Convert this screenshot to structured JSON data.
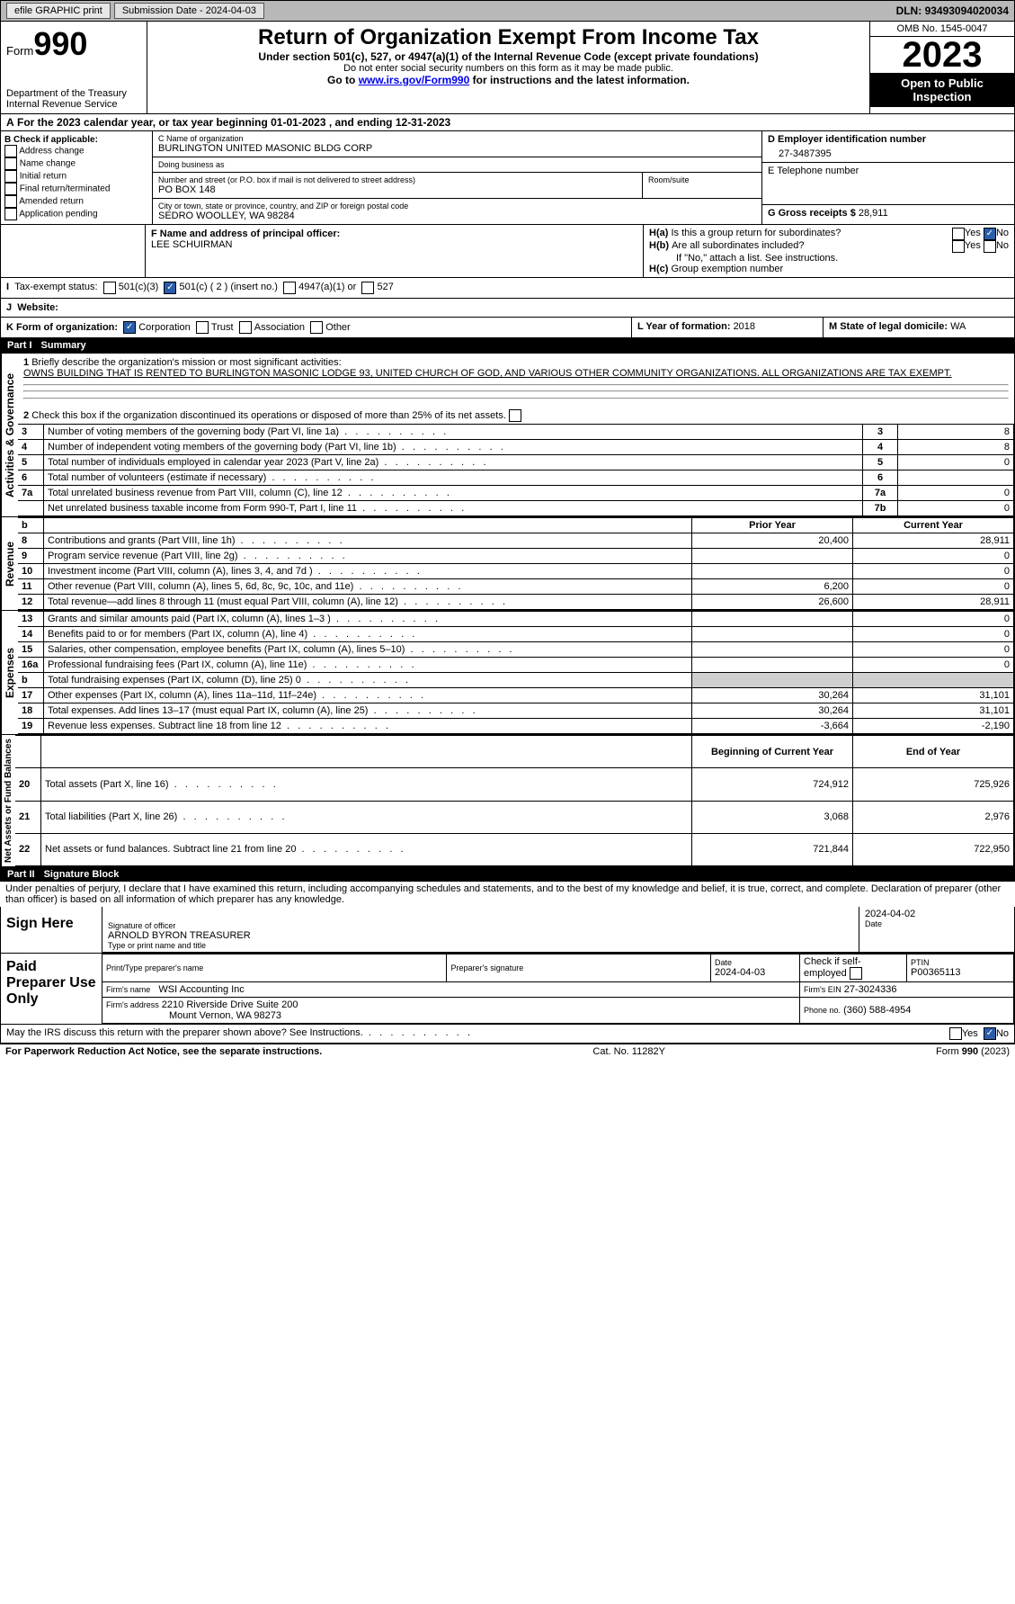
{
  "topbar": {
    "efile": "efile GRAPHIC print",
    "subdate_lbl": "Submission Date - ",
    "subdate": "2024-04-03",
    "dln_lbl": "DLN: ",
    "dln": "93493094020034"
  },
  "hdr": {
    "form_word": "Form",
    "form_num": "990",
    "dept": "Department of the Treasury",
    "irs": "Internal Revenue Service",
    "title": "Return of Organization Exempt From Income Tax",
    "sub": "Under section 501(c), 527, or 4947(a)(1) of the Internal Revenue Code (except private foundations)",
    "sub2": "Do not enter social security numbers on this form as it may be made public.",
    "link_pre": "Go to ",
    "link": "www.irs.gov/Form990",
    "link_post": " for instructions and the latest information.",
    "omb": "OMB No. 1545-0047",
    "year": "2023",
    "open": "Open to Public Inspection"
  },
  "A": {
    "line": "For the 2023 calendar year, or tax year beginning 01-01-2023    , and ending 12-31-2023"
  },
  "B": {
    "hdr": "B Check if applicable:",
    "items": [
      "Address change",
      "Name change",
      "Initial return",
      "Final return/terminated",
      "Amended return",
      "Application pending"
    ]
  },
  "C": {
    "name_lbl": "C Name of organization",
    "name": "BURLINGTON UNITED MASONIC BLDG CORP",
    "dba_lbl": "Doing business as",
    "dba": "",
    "addr_lbl": "Number and street (or P.O. box if mail is not delivered to street address)",
    "addr": "PO BOX 148",
    "room_lbl": "Room/suite",
    "room": "",
    "city_lbl": "City or town, state or province, country, and ZIP or foreign postal code",
    "city": "SEDRO WOOLLEY, WA  98284"
  },
  "D": {
    "lbl": "D Employer identification number",
    "val": "27-3487395"
  },
  "E": {
    "lbl": "E Telephone number",
    "val": ""
  },
  "G": {
    "lbl": "G Gross receipts $",
    "val": "28,911"
  },
  "F": {
    "lbl": "F  Name and address of principal officer:",
    "val": "LEE SCHUIRMAN"
  },
  "H": {
    "a": "Is this a group return for subordinates?",
    "b": "Are all subordinates included?",
    "b_note": "If \"No,\" attach a list. See instructions.",
    "c": "Group exemption number",
    "yes": "Yes",
    "no": "No"
  },
  "I": {
    "lbl": "Tax-exempt status:",
    "opts": [
      "501(c)(3)",
      "501(c) ( 2 ) (insert no.)",
      "4947(a)(1) or",
      "527"
    ]
  },
  "J": {
    "lbl": "Website:",
    "val": ""
  },
  "K": {
    "lbl": "K Form of organization:",
    "opts": [
      "Corporation",
      "Trust",
      "Association",
      "Other"
    ]
  },
  "L": {
    "lbl": "L Year of formation: ",
    "val": "2018"
  },
  "M": {
    "lbl": "M State of legal domicile: ",
    "val": "WA"
  },
  "partI": {
    "label": "Part I",
    "title": "Summary"
  },
  "sec_labels": {
    "ag": "Activities & Governance",
    "rev": "Revenue",
    "exp": "Expenses",
    "na": "Net Assets or Fund Balances"
  },
  "l1": {
    "lbl": "Briefly describe the organization's mission or most significant activities:",
    "txt": "OWNS BUILDING THAT IS RENTED TO BURLINGTON MASONIC LODGE 93, UNITED CHURCH OF GOD, AND VARIOUS OTHER COMMUNITY ORGANIZATIONS. ALL ORGANIZATIONS ARE TAX EXEMPT."
  },
  "l2": "Check this box      if the organization discontinued its operations or disposed of more than 25% of its net assets.",
  "ag_rows": [
    {
      "n": "3",
      "t": "Number of voting members of the governing body (Part VI, line 1a)",
      "k": "3",
      "v": "8"
    },
    {
      "n": "4",
      "t": "Number of independent voting members of the governing body (Part VI, line 1b)",
      "k": "4",
      "v": "8"
    },
    {
      "n": "5",
      "t": "Total number of individuals employed in calendar year 2023 (Part V, line 2a)",
      "k": "5",
      "v": "0"
    },
    {
      "n": "6",
      "t": "Total number of volunteers (estimate if necessary)",
      "k": "6",
      "v": ""
    },
    {
      "n": "7a",
      "t": "Total unrelated business revenue from Part VIII, column (C), line 12",
      "k": "7a",
      "v": "0"
    },
    {
      "n": "",
      "t": "Net unrelated business taxable income from Form 990-T, Part I, line 11",
      "k": "7b",
      "v": "0"
    }
  ],
  "py": "Prior Year",
  "cy": "Current Year",
  "rev_rows": [
    {
      "n": "8",
      "t": "Contributions and grants (Part VIII, line 1h)",
      "p": "20,400",
      "c": "28,911"
    },
    {
      "n": "9",
      "t": "Program service revenue (Part VIII, line 2g)",
      "p": "",
      "c": "0"
    },
    {
      "n": "10",
      "t": "Investment income (Part VIII, column (A), lines 3, 4, and 7d )",
      "p": "",
      "c": "0"
    },
    {
      "n": "11",
      "t": "Other revenue (Part VIII, column (A), lines 5, 6d, 8c, 9c, 10c, and 11e)",
      "p": "6,200",
      "c": "0"
    },
    {
      "n": "12",
      "t": "Total revenue—add lines 8 through 11 (must equal Part VIII, column (A), line 12)",
      "p": "26,600",
      "c": "28,911"
    }
  ],
  "exp_rows": [
    {
      "n": "13",
      "t": "Grants and similar amounts paid (Part IX, column (A), lines 1–3 )",
      "p": "",
      "c": "0"
    },
    {
      "n": "14",
      "t": "Benefits paid to or for members (Part IX, column (A), line 4)",
      "p": "",
      "c": "0"
    },
    {
      "n": "15",
      "t": "Salaries, other compensation, employee benefits (Part IX, column (A), lines 5–10)",
      "p": "",
      "c": "0"
    },
    {
      "n": "16a",
      "t": "Professional fundraising fees (Part IX, column (A), line 11e)",
      "p": "",
      "c": "0"
    },
    {
      "n": "b",
      "t": "Total fundraising expenses (Part IX, column (D), line 25) 0",
      "p": "__shade__",
      "c": "__shade__"
    },
    {
      "n": "17",
      "t": "Other expenses (Part IX, column (A), lines 11a–11d, 11f–24e)",
      "p": "30,264",
      "c": "31,101"
    },
    {
      "n": "18",
      "t": "Total expenses. Add lines 13–17 (must equal Part IX, column (A), line 25)",
      "p": "30,264",
      "c": "31,101"
    },
    {
      "n": "19",
      "t": "Revenue less expenses. Subtract line 18 from line 12",
      "p": "-3,664",
      "c": "-2,190"
    }
  ],
  "bcy": "Beginning of Current Year",
  "ey": "End of Year",
  "na_rows": [
    {
      "n": "20",
      "t": "Total assets (Part X, line 16)",
      "p": "724,912",
      "c": "725,926"
    },
    {
      "n": "21",
      "t": "Total liabilities (Part X, line 26)",
      "p": "3,068",
      "c": "2,976"
    },
    {
      "n": "22",
      "t": "Net assets or fund balances. Subtract line 21 from line 20",
      "p": "721,844",
      "c": "722,950"
    }
  ],
  "partII": {
    "label": "Part II",
    "title": "Signature Block"
  },
  "perjury": "Under penalties of perjury, I declare that I have examined this return, including accompanying schedules and statements, and to the best of my knowledge and belief, it is true, correct, and complete. Declaration of preparer (other than officer) is based on all information of which preparer has any knowledge.",
  "sign": {
    "here": "Sign Here",
    "sig_lbl": "Signature of officer",
    "sig_name": "ARNOLD BYRON  TREASURER",
    "sig_title": "Type or print name and title",
    "date_lbl": "Date",
    "date": "2024-04-02"
  },
  "paid": {
    "here": "Paid Preparer Use Only",
    "pname_lbl": "Print/Type preparer's name",
    "pname": "",
    "psig_lbl": "Preparer's signature",
    "psig": "",
    "pdate_lbl": "Date",
    "pdate": "2024-04-03",
    "ck_lbl": "Check      if self-employed",
    "ptin_lbl": "PTIN",
    "ptin": "P00365113",
    "firm_lbl": "Firm's name",
    "firm": "WSI Accounting Inc",
    "ein_lbl": "Firm's EIN",
    "ein": "27-3024336",
    "addr_lbl": "Firm's address",
    "addr": "2210 Riverside Drive Suite 200",
    "addr2": "Mount Vernon, WA  98273",
    "phone_lbl": "Phone no.",
    "phone": "(360) 588-4954"
  },
  "discuss": "May the IRS discuss this return with the preparer shown above? See Instructions.",
  "footer": {
    "l": "For Paperwork Reduction Act Notice, see the separate instructions.",
    "m": "Cat. No. 11282Y",
    "r": "Form 990 (2023)"
  }
}
